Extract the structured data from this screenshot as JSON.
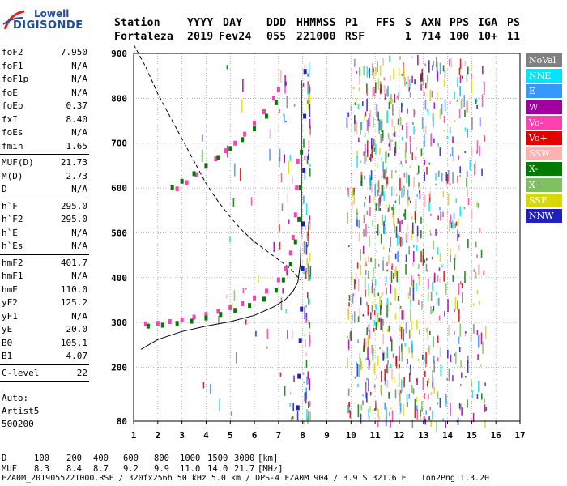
{
  "logo": {
    "line1": "Lowell",
    "line2": "DIGISONDE",
    "colors": {
      "red": "#e0231b",
      "blue": "#1f4e9e"
    }
  },
  "header": {
    "labels": [
      "Station",
      "YYYY",
      "DAY",
      "DDD",
      "HHMMSS",
      "P1",
      "FFS",
      "S",
      "AXN",
      "PPS",
      "IGA",
      "PS"
    ],
    "values": [
      "Fortaleza",
      "2019",
      "Fev24",
      "055",
      "221000",
      "RSF",
      "1",
      "714",
      "100",
      "10+",
      "11"
    ]
  },
  "params": {
    "group1": [
      {
        "name": "foF2",
        "value": "7.950"
      },
      {
        "name": "foF1",
        "value": "N/A"
      },
      {
        "name": "foF1p",
        "value": "N/A"
      },
      {
        "name": "foE",
        "value": "N/A"
      },
      {
        "name": "foEp",
        "value": "0.37"
      },
      {
        "name": "fxI",
        "value": "8.40"
      },
      {
        "name": "foEs",
        "value": "N/A"
      },
      {
        "name": "fmin",
        "value": "1.65"
      }
    ],
    "group2": [
      {
        "name": "MUF(D)",
        "value": "21.73"
      },
      {
        "name": "M(D)",
        "value": "2.73"
      },
      {
        "name": "D",
        "value": "N/A"
      }
    ],
    "group3": [
      {
        "name": "h`F",
        "value": "295.0"
      },
      {
        "name": "h`F2",
        "value": "295.0"
      },
      {
        "name": "h`E",
        "value": "N/A"
      },
      {
        "name": "h`Es",
        "value": "N/A"
      }
    ],
    "group4": [
      {
        "name": "hmF2",
        "value": "401.7"
      },
      {
        "name": "hmF1",
        "value": "N/A"
      },
      {
        "name": "hmE",
        "value": "110.0"
      },
      {
        "name": "yF2",
        "value": "125.2"
      },
      {
        "name": "yF1",
        "value": "N/A"
      },
      {
        "name": "yE",
        "value": "20.0"
      },
      {
        "name": "B0",
        "value": "105.1"
      },
      {
        "name": "B1",
        "value": "4.07"
      }
    ],
    "group5": [
      {
        "name": "C-level",
        "value": "22"
      }
    ]
  },
  "autoscaling": {
    "line1": "Auto:",
    "line2": "Artist5",
    "line3": "500200"
  },
  "legend": [
    {
      "label": "NoVal",
      "color": "#808080"
    },
    {
      "label": "NNE",
      "color": "#00e5ff"
    },
    {
      "label": "E",
      "color": "#3399ff"
    },
    {
      "label": "W",
      "color": "#a000a0"
    },
    {
      "label": "Vo-",
      "color": "#ff40b0"
    },
    {
      "label": "Vo+",
      "color": "#e00000"
    },
    {
      "label": "SSW",
      "color": "#ffb0b0"
    },
    {
      "label": "X-",
      "color": "#007a00"
    },
    {
      "label": "X+",
      "color": "#80c060"
    },
    {
      "label": "SSE",
      "color": "#d8d800"
    },
    {
      "label": "NNW",
      "color": "#2020c0"
    }
  ],
  "chart_data": {
    "type": "scatter",
    "title": "",
    "xlabel": "",
    "ylabel": "",
    "xlim": [
      1,
      17
    ],
    "ylim": [
      80,
      900
    ],
    "x_ticks": [
      "1",
      "2",
      "3",
      "4",
      "5",
      "6",
      "7",
      "8",
      "9",
      "10",
      "11",
      "12",
      "13",
      "14",
      "15",
      "16",
      "17"
    ],
    "y_ticks": [
      "80",
      "200",
      "300",
      "400",
      "500",
      "600",
      "700",
      "800",
      "900"
    ],
    "series": [
      {
        "name": "Vo-",
        "points": [
          [
            1.5,
            297
          ],
          [
            2.0,
            298
          ],
          [
            2.5,
            302
          ],
          [
            3.0,
            306
          ],
          [
            3.5,
            312
          ],
          [
            4.0,
            318
          ],
          [
            4.5,
            325
          ],
          [
            5.0,
            333
          ],
          [
            5.5,
            342
          ],
          [
            6.0,
            355
          ],
          [
            6.5,
            370
          ],
          [
            7.0,
            395
          ],
          [
            7.3,
            420
          ],
          [
            7.5,
            455
          ],
          [
            7.6,
            490
          ],
          [
            7.7,
            540
          ],
          [
            7.75,
            600
          ],
          [
            7.8,
            660
          ],
          [
            2.8,
            598
          ],
          [
            3.2,
            612
          ],
          [
            3.6,
            630
          ],
          [
            4.0,
            648
          ],
          [
            4.4,
            665
          ],
          [
            4.8,
            683
          ],
          [
            5.2,
            700
          ],
          [
            5.6,
            720
          ],
          [
            6.0,
            745
          ],
          [
            6.4,
            770
          ],
          [
            6.8,
            800
          ],
          [
            7.0,
            820
          ]
        ]
      },
      {
        "name": "X-",
        "points": [
          [
            1.6,
            292
          ],
          [
            2.2,
            294
          ],
          [
            2.8,
            298
          ],
          [
            3.4,
            303
          ],
          [
            4.0,
            310
          ],
          [
            4.6,
            318
          ],
          [
            5.2,
            327
          ],
          [
            5.8,
            338
          ],
          [
            6.4,
            352
          ],
          [
            6.9,
            372
          ],
          [
            7.2,
            395
          ],
          [
            7.5,
            430
          ],
          [
            7.7,
            480
          ],
          [
            7.85,
            530
          ],
          [
            7.9,
            600
          ],
          [
            7.95,
            680
          ],
          [
            2.6,
            602
          ],
          [
            3.0,
            615
          ],
          [
            3.5,
            632
          ],
          [
            4.0,
            650
          ],
          [
            4.5,
            668
          ],
          [
            5.0,
            688
          ],
          [
            5.5,
            708
          ],
          [
            6.0,
            732
          ],
          [
            6.5,
            760
          ],
          [
            6.9,
            790
          ]
        ]
      },
      {
        "name": "NNW",
        "points": [
          [
            7.8,
            110
          ],
          [
            7.85,
            180
          ],
          [
            7.9,
            260
          ],
          [
            7.95,
            330
          ],
          [
            8.0,
            420
          ],
          [
            8.02,
            520
          ],
          [
            8.05,
            640
          ],
          [
            8.08,
            760
          ],
          [
            8.1,
            860
          ]
        ]
      }
    ],
    "lines": [
      {
        "name": "",
        "style": "solid",
        "points": [
          [
            1.3,
            240
          ],
          [
            2.0,
            262
          ],
          [
            3.0,
            280
          ],
          [
            4.0,
            292
          ],
          [
            5.0,
            302
          ],
          [
            6.0,
            316
          ],
          [
            6.8,
            335
          ],
          [
            7.3,
            352
          ],
          [
            7.6,
            370
          ],
          [
            7.8,
            390
          ],
          [
            7.9,
            430
          ],
          [
            7.95,
            520
          ],
          [
            7.95,
            620
          ],
          [
            7.95,
            720
          ],
          [
            7.95,
            840
          ]
        ]
      },
      {
        "name": "",
        "style": "dashed",
        "points": [
          [
            1.0,
            920
          ],
          [
            1.5,
            870
          ],
          [
            2.0,
            810
          ],
          [
            2.5,
            760
          ],
          [
            3.0,
            710
          ],
          [
            3.5,
            660
          ],
          [
            4.0,
            610
          ],
          [
            4.5,
            570
          ],
          [
            5.0,
            535
          ],
          [
            5.5,
            505
          ],
          [
            6.0,
            480
          ],
          [
            6.5,
            460
          ],
          [
            7.0,
            440
          ],
          [
            7.5,
            420
          ],
          [
            7.9,
            395
          ]
        ]
      }
    ]
  },
  "bottom": {
    "row_d_label": "D",
    "row_d_values": [
      "100",
      "200",
      "400",
      "600",
      "800",
      "1000",
      "1500",
      "3000",
      "[km]"
    ],
    "row_muf_label": "MUF",
    "row_muf_values": [
      "8.3",
      "8.4",
      "8.7",
      "9.2",
      "9.9",
      "11.0",
      "14.0",
      "21.7",
      "[MHz]"
    ],
    "footer": "FZA0M_2019055221000.RSF / 320fx256h 50 kHz 5.0 km / DPS-4 FZA0M 904 / 3.9 S 321.6 E   Ion2Png 1.3.20"
  }
}
